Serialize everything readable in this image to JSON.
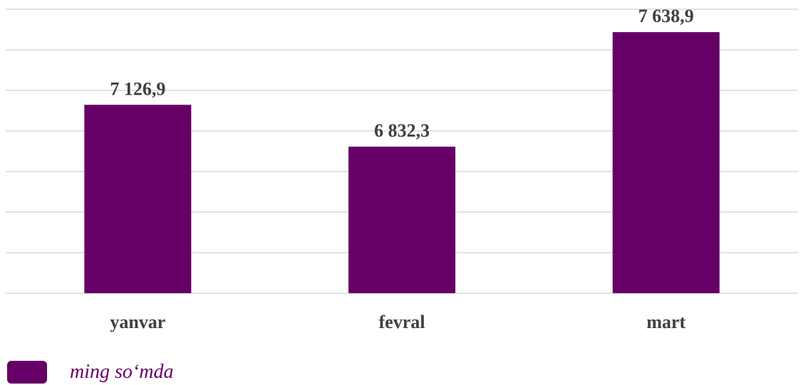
{
  "chart_data": {
    "type": "bar",
    "categories": [
      "yanvar",
      "fevral",
      "mart"
    ],
    "series": [
      {
        "name": "ming so‘mda",
        "values": [
          7126.9,
          6832.3,
          7638.9
        ],
        "labels": [
          "7 126,9",
          "6 832,3",
          "7 638,9"
        ],
        "color": "#660066"
      }
    ],
    "ylim": [
      5800,
      7800
    ],
    "grid": true,
    "legend_position": "bottom-left"
  },
  "legend": {
    "label": "ming so‘mda",
    "color": "#660066"
  }
}
